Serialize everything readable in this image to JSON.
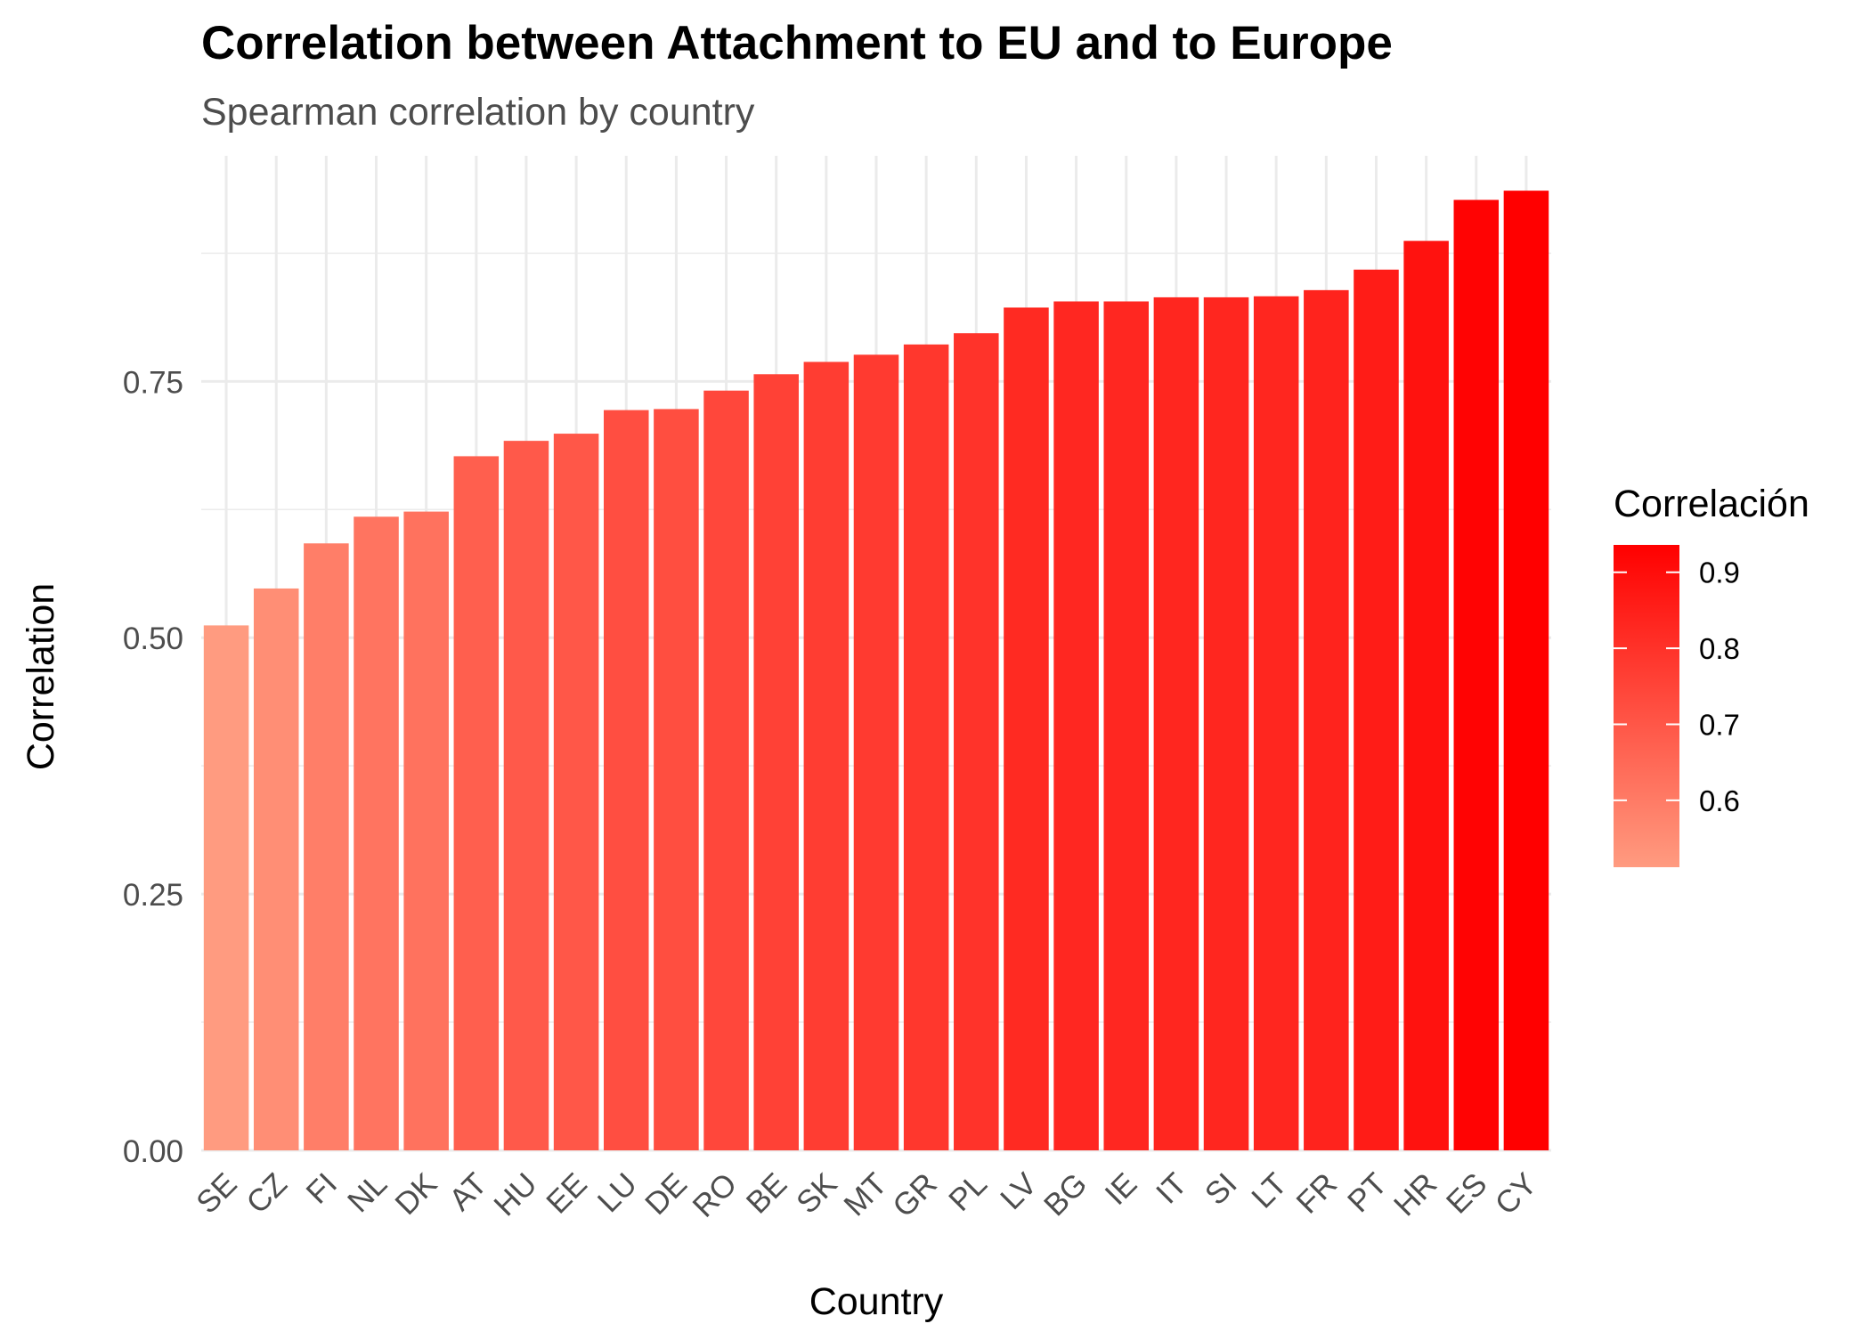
{
  "chart_data": {
    "type": "bar",
    "title": "Correlation between Attachment to EU and to Europe",
    "subtitle": "Spearman correlation by country",
    "xlabel": "Country",
    "ylabel": "Correlation",
    "categories": [
      "SE",
      "CZ",
      "FI",
      "NL",
      "DK",
      "AT",
      "HU",
      "EE",
      "LU",
      "DE",
      "RO",
      "BE",
      "SK",
      "MT",
      "GR",
      "PL",
      "LV",
      "BG",
      "IE",
      "IT",
      "SI",
      "LT",
      "FR",
      "PT",
      "HR",
      "ES",
      "CY"
    ],
    "values": [
      0.512,
      0.548,
      0.592,
      0.618,
      0.623,
      0.677,
      0.692,
      0.699,
      0.722,
      0.723,
      0.741,
      0.757,
      0.769,
      0.776,
      0.786,
      0.797,
      0.822,
      0.828,
      0.828,
      0.832,
      0.832,
      0.833,
      0.839,
      0.859,
      0.887,
      0.927,
      0.936
    ],
    "ylim": [
      0,
      0.97
    ],
    "yticks": [
      "0.00",
      "0.25",
      "0.50",
      "0.75"
    ],
    "ytick_values": [
      0,
      0.25,
      0.5,
      0.75
    ],
    "grid": true,
    "legend": {
      "title": "Correlación",
      "position": "right",
      "ticks": [
        "0.6",
        "0.7",
        "0.8",
        "0.9"
      ],
      "tick_values": [
        0.6,
        0.7,
        0.8,
        0.9
      ],
      "range": [
        0.512,
        0.936
      ]
    },
    "colors": {
      "low": "#ff9b80",
      "high": "#ff0000",
      "grid": "#ebebeb",
      "tick_text": "#4d4d4d",
      "title_text": "#000000",
      "subtitle_text": "#4d4d4d"
    }
  }
}
